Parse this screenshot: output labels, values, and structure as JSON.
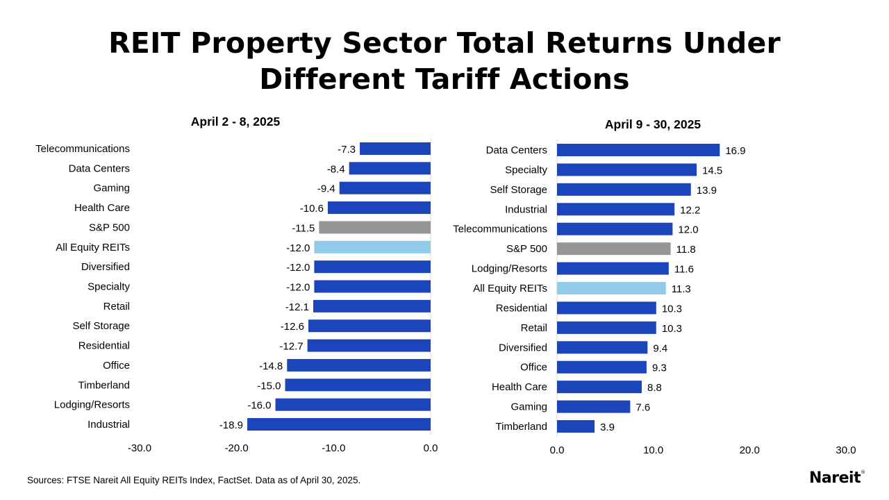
{
  "title_line1": "REIT Property Sector Total Returns Under",
  "title_line2": "Different Tariff Actions",
  "source": "Sources: FTSE Nareit All Equity REITs Index, FactSet. Data as of April 30, 2025.",
  "logo": "Nareit",
  "logo_mark": "®",
  "colors": {
    "default": "#1c45bc",
    "sp500": "#969696",
    "all_equity": "#92cbea"
  },
  "chart_data": [
    {
      "type": "bar",
      "orientation": "horizontal",
      "title": "April 2 - 8, 2025",
      "xlim": [
        -30,
        0
      ],
      "ticks": [
        "-30.0",
        "-20.0",
        "-10.0",
        "0.0"
      ],
      "tick_values": [
        -30,
        -20,
        -10,
        0
      ],
      "categories": [
        "Telecommunications",
        "Data Centers",
        "Gaming",
        "Health Care",
        "S&P 500",
        "All Equity REITs",
        "Diversified",
        "Specialty",
        "Retail",
        "Self Storage",
        "Residential",
        "Office",
        "Timberland",
        "Lodging/Resorts",
        "Industrial"
      ],
      "values": [
        -7.3,
        -8.4,
        -9.4,
        -10.6,
        -11.5,
        -12.0,
        -12.0,
        -12.0,
        -12.1,
        -12.6,
        -12.7,
        -14.8,
        -15.0,
        -16.0,
        -18.9
      ],
      "labels": [
        "-7.3",
        "-8.4",
        "-9.4",
        "-10.6",
        "-11.5",
        "-12.0",
        "-12.0",
        "-12.0",
        "-12.1",
        "-12.6",
        "-12.7",
        "-14.8",
        "-15.0",
        "-16.0",
        "-18.9"
      ]
    },
    {
      "type": "bar",
      "orientation": "horizontal",
      "title": "April 9 - 30, 2025",
      "xlim": [
        0,
        30
      ],
      "ticks": [
        "0.0",
        "10.0",
        "20.0",
        "30.0"
      ],
      "tick_values": [
        0,
        10,
        20,
        30
      ],
      "categories": [
        "Data Centers",
        "Specialty",
        "Self Storage",
        "Industrial",
        "Telecommunications",
        "S&P 500",
        "Lodging/Resorts",
        "All Equity REITs",
        "Residential",
        "Retail",
        "Diversified",
        "Office",
        "Health Care",
        "Gaming",
        "Timberland"
      ],
      "values": [
        16.9,
        14.5,
        13.9,
        12.2,
        12.0,
        11.8,
        11.6,
        11.3,
        10.3,
        10.3,
        9.4,
        9.3,
        8.8,
        7.6,
        3.9
      ],
      "labels": [
        "16.9",
        "14.5",
        "13.9",
        "12.2",
        "12.0",
        "11.8",
        "11.6",
        "11.3",
        "10.3",
        "10.3",
        "9.4",
        "9.3",
        "8.8",
        "7.6",
        "3.9"
      ]
    }
  ]
}
